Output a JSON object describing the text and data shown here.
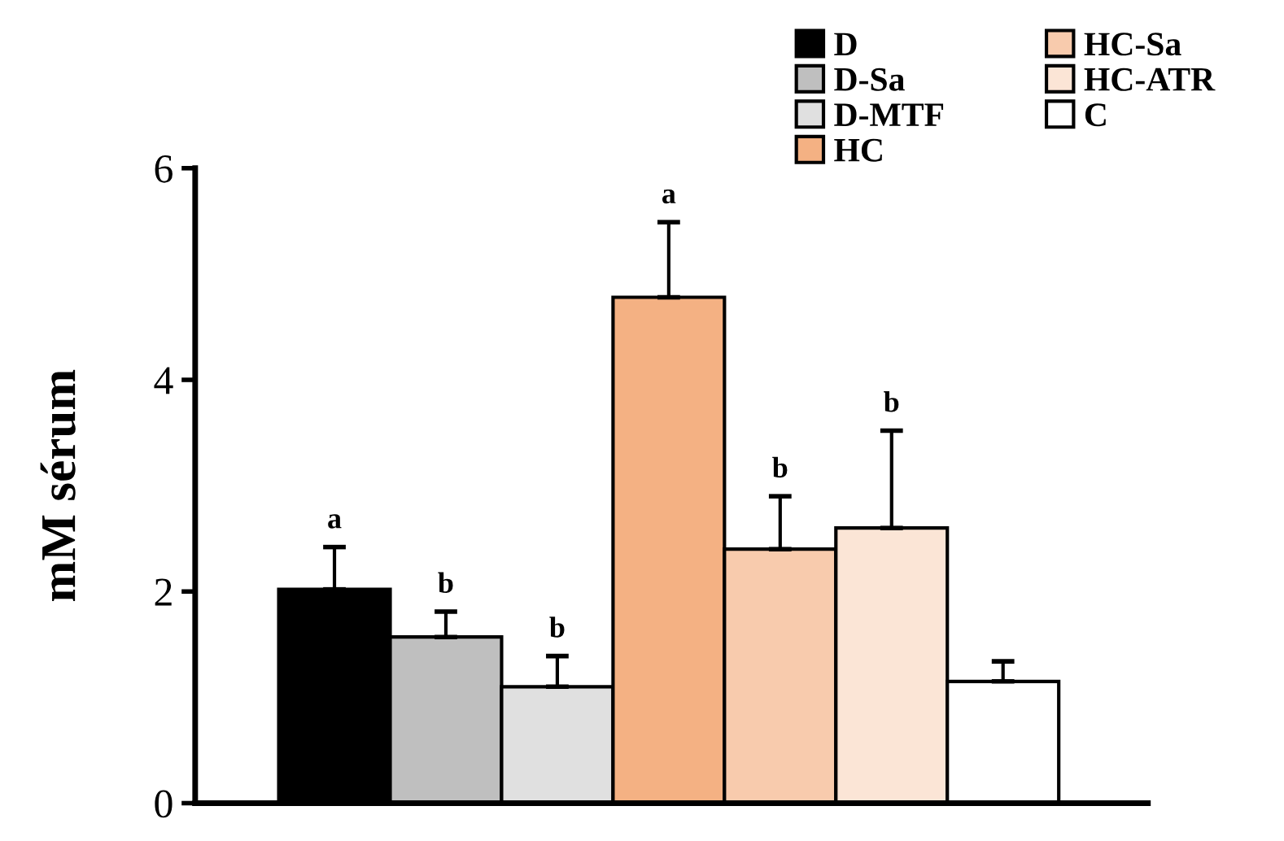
{
  "chart_data": {
    "type": "bar",
    "ylabel": "mM sérum",
    "categories": [
      null
    ],
    "series": [
      {
        "name": "D",
        "color": "#000000",
        "values": [
          2.02
        ],
        "errors": [
          0.4
        ]
      },
      {
        "name": "D-Sa",
        "color": "#bfbfbf",
        "values": [
          1.57
        ],
        "errors": [
          0.24
        ]
      },
      {
        "name": "D-MTF",
        "color": "#e0e0e0",
        "values": [
          1.1
        ],
        "errors": [
          0.29
        ]
      },
      {
        "name": "HC",
        "color": "#f4b183",
        "values": [
          4.78
        ],
        "errors": [
          0.71
        ]
      },
      {
        "name": "HC-Sa",
        "color": "#f8cbad",
        "values": [
          2.4
        ],
        "errors": [
          0.5
        ]
      },
      {
        "name": "HC-ATR",
        "color": "#fbe5d6",
        "values": [
          2.6
        ],
        "errors": [
          0.92
        ]
      },
      {
        "name": "C",
        "color": "#ffffff",
        "values": [
          1.15
        ],
        "errors": [
          0.19
        ]
      }
    ],
    "annotations": [
      "a",
      "b",
      "b",
      "a",
      "b",
      "b"
    ],
    "ylim": [
      0,
      6
    ],
    "yticks": [
      0,
      2,
      4,
      6
    ],
    "grid": false,
    "legend": "top right"
  }
}
